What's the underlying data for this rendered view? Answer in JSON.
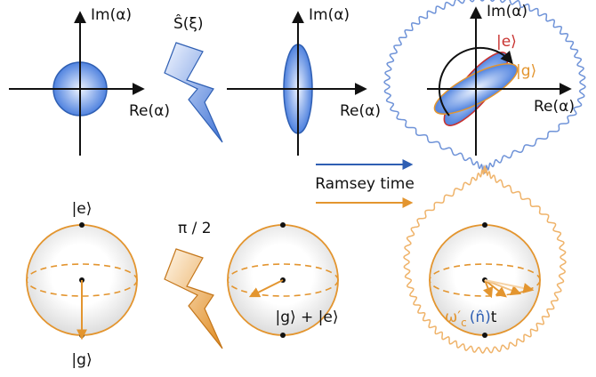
{
  "panels": [
    {
      "im_label": "Im(α)",
      "re_label": "Re(α)"
    },
    {
      "im_label": "Im(α)",
      "re_label": "Re(α)"
    },
    {
      "im_label": "Im(α)",
      "re_label": "Re(α)"
    }
  ],
  "squeeze_label": "Ŝ(ξ)",
  "state_labels": {
    "e": "|e⟩",
    "g": "|g⟩"
  },
  "ramsey_label": "Ramsey time",
  "bloch": {
    "top": "|e⟩",
    "bottom": "|g⟩"
  },
  "pulse_label": "π / 2",
  "superposition_label": "|g⟩ + |e⟩",
  "precession": {
    "omega": "ω′",
    "sub": "c",
    "axis": "(n̂)",
    "t": "t"
  }
}
